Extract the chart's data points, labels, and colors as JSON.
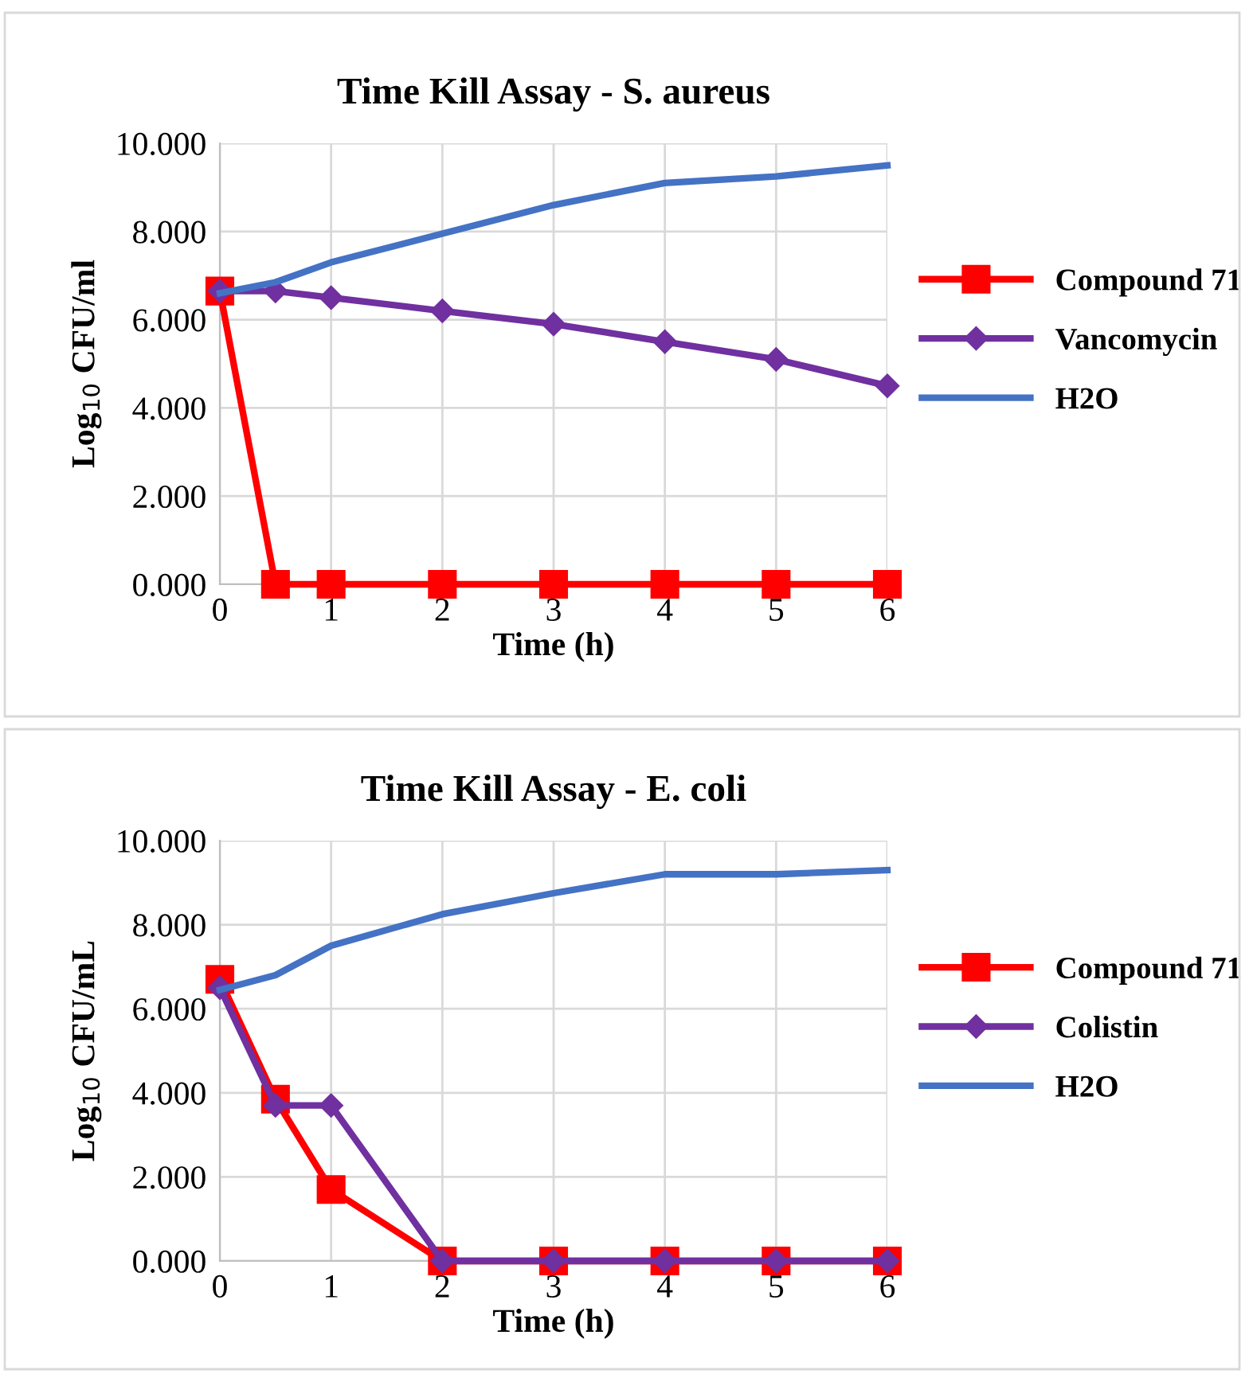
{
  "chart_data": [
    {
      "type": "line",
      "title": "Time Kill Assay - S. aureus",
      "xlabel": "Time (h)",
      "ylabel": "Log$_{10}$ CFU/ml",
      "x": [
        0,
        0.5,
        1,
        2,
        3,
        4,
        5,
        6
      ],
      "series": [
        {
          "name": "Compound 71",
          "color": "#ff0000",
          "marker": "square",
          "values": [
            6.65,
            0,
            0,
            0,
            0,
            0,
            0,
            0
          ]
        },
        {
          "name": "Vancomycin",
          "color": "#7030a0",
          "marker": "diamond",
          "values": [
            6.65,
            6.65,
            6.5,
            6.2,
            5.9,
            5.5,
            5.1,
            4.5
          ]
        },
        {
          "name": "H2O",
          "color": "#4472c4",
          "marker": "none",
          "values": [
            6.6,
            6.85,
            7.3,
            7.95,
            8.6,
            9.1,
            9.25,
            9.5
          ]
        }
      ],
      "xlim": [
        0,
        6
      ],
      "xticks": [
        0,
        1,
        2,
        3,
        4,
        5,
        6
      ],
      "ylim": [
        0,
        10
      ],
      "yticks": [
        {
          "value": 0,
          "label": "0.000"
        },
        {
          "value": 2,
          "label": "2.000"
        },
        {
          "value": 4,
          "label": "4.000"
        },
        {
          "value": 6,
          "label": "6.000"
        },
        {
          "value": 8,
          "label": "8.000"
        },
        {
          "value": 10,
          "label": "10.000"
        }
      ],
      "grid": true,
      "legend": "right",
      "line_style": "solid"
    },
    {
      "type": "line",
      "title": "Time Kill Assay - E. coli",
      "xlabel": "Time (h)",
      "ylabel": "Log$_{10}$ CFU/mL",
      "x": [
        0,
        0.5,
        1,
        2,
        3,
        4,
        5,
        6
      ],
      "series": [
        {
          "name": "Compound 71",
          "color": "#ff0000",
          "marker": "square",
          "values": [
            6.7,
            3.85,
            1.7,
            0,
            0,
            0,
            0,
            0
          ]
        },
        {
          "name": "Colistin",
          "color": "#7030a0",
          "marker": "diamond",
          "values": [
            6.5,
            3.7,
            3.7,
            0,
            0,
            0,
            0,
            0
          ]
        },
        {
          "name": "H2O",
          "color": "#4472c4",
          "marker": "none",
          "values": [
            6.45,
            6.8,
            7.5,
            8.25,
            8.75,
            9.2,
            9.2,
            9.3
          ]
        }
      ],
      "xlim": [
        0,
        6
      ],
      "xticks": [
        0,
        1,
        2,
        3,
        4,
        5,
        6
      ],
      "ylim": [
        0,
        10
      ],
      "yticks": [
        {
          "value": 0,
          "label": "0.000"
        },
        {
          "value": 2,
          "label": "2.000"
        },
        {
          "value": 4,
          "label": "4.000"
        },
        {
          "value": 6,
          "label": "6.000"
        },
        {
          "value": 8,
          "label": "8.000"
        },
        {
          "value": 10,
          "label": "10.000"
        }
      ],
      "grid": true,
      "legend": "right",
      "line_style": "solid"
    }
  ]
}
